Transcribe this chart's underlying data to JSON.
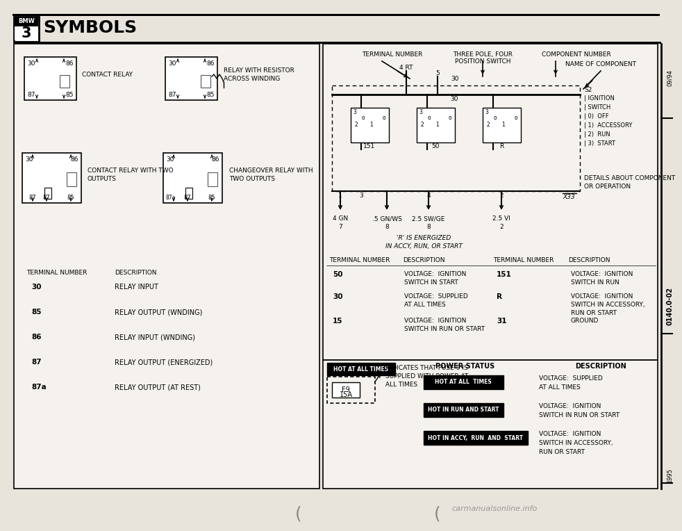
{
  "title": "SYMBOLS",
  "bmw_series": "3",
  "page_code_top": "09/94",
  "page_code_mid": "0140.0-02",
  "page_code_bot": "1995",
  "bg_color": "#e8e4dc",
  "panel_bg": "#f5f2ed",
  "left_panel": {
    "contact_relay_label": "CONTACT RELAY",
    "relay_with_resistor_label": [
      "RELAY WITH RESISTOR",
      "ACROSS WINDING"
    ],
    "contact_relay_two_label": [
      "CONTACT RELAY WITH TWO",
      "OUTPUTS"
    ],
    "changeover_relay_label": [
      "CHANGEOVER RELAY WITH",
      "TWO OUTPUTS"
    ],
    "terminal_table_header": [
      "TERMINAL NUMBER",
      "DESCRIPTION"
    ],
    "terminal_table_rows": [
      [
        "30",
        "RELAY INPUT"
      ],
      [
        "85",
        "RELAY OUTPUT (WNDING)"
      ],
      [
        "86",
        "RELAY INPUT (WNDING)"
      ],
      [
        "87",
        "RELAY OUTPUT (ENERGIZED)"
      ],
      [
        "87a",
        "RELAY OUTPUT (AT REST)"
      ]
    ]
  },
  "right_top": {
    "label_terminal_number": "TERMINAL NUMBER",
    "label_three_pole": "THREE POLE, FOUR",
    "label_position_switch": "POSITION SWITCH",
    "label_component_number": "COMPONENT NUMBER",
    "label_name_component": "NAME OF COMPONENT",
    "wire_top_labels": [
      "4 RT",
      "5",
      "30"
    ],
    "switch_labels_right": [
      "S2",
      "| IGNITION",
      "| SWITCH",
      "| 0)  OFF",
      "| 1)  ACCESSORY",
      "| 2)  RUN",
      "| 3)  START"
    ],
    "label_details": [
      "DETAILS ABOUT COMPONENT",
      "OR OPERATION"
    ],
    "energized_note": [
      "'R' IS ENERGIZED",
      "IN ACCY, RUN, OR START"
    ],
    "bottom_wire_labels": [
      "4 GN",
      ".5 GN/WS",
      "2.5 SW/GE",
      "2.5 VI"
    ],
    "bottom_pos_nums": [
      "7",
      "8",
      "8",
      "2"
    ],
    "top_pos_nums": [
      "1",
      "3",
      "4",
      "2"
    ],
    "switch_bottom_labels": [
      "151",
      "50",
      "R"
    ],
    "connector_label": "X33",
    "terminal_table_header": [
      "TERMINAL NUMBER",
      "DESCRIPTION",
      "TERMINAL NUMBER",
      "DESCRIPTION"
    ],
    "terminal_table_rows": [
      [
        "50",
        "VOLTAGE:  IGNITION\nSWITCH IN START",
        "151",
        "VOLTAGE:  IGNITION\nSWITCH IN RUN"
      ],
      [
        "30",
        "VOLTAGE:  SUPPLIED\nAT ALL TIMES",
        "R",
        "VOLTAGE:  IGNITION\nSWITCH IN ACCESSORY,\nRUN OR START"
      ],
      [
        "15",
        "VOLTAGE:  IGNITION\nSWITCH IN RUN OR START",
        "31",
        "GROUND"
      ]
    ]
  },
  "right_bottom": {
    "label_hot_all": "HOT AT ALL TIMES",
    "fuse_line1": "F9",
    "fuse_line2": "15A",
    "indicates_text": [
      "INDICATES THAT FUSE 9 IS",
      "SUPPLIED WITH POWER AT",
      "ALL TIMES"
    ],
    "label_power_status": "POWER STATUS",
    "label_description": "DESCRIPTION",
    "status_rows": [
      {
        "status": "HOT AT ALL  TIMES",
        "desc": [
          "VOLTAGE:  SUPPLIED",
          "AT ALL TIMES"
        ]
      },
      {
        "status": "HOT IN RUN AND START",
        "desc": [
          "VOLTAGE:  IGNITION",
          "SWITCH IN RUN OR START"
        ]
      },
      {
        "status": "HOT IN ACCY,  RUN  AND  START",
        "desc": [
          "VOLTAGE:  IGNITION",
          "SWITCH IN ACCESSORY,",
          "RUN OR START"
        ]
      }
    ]
  }
}
